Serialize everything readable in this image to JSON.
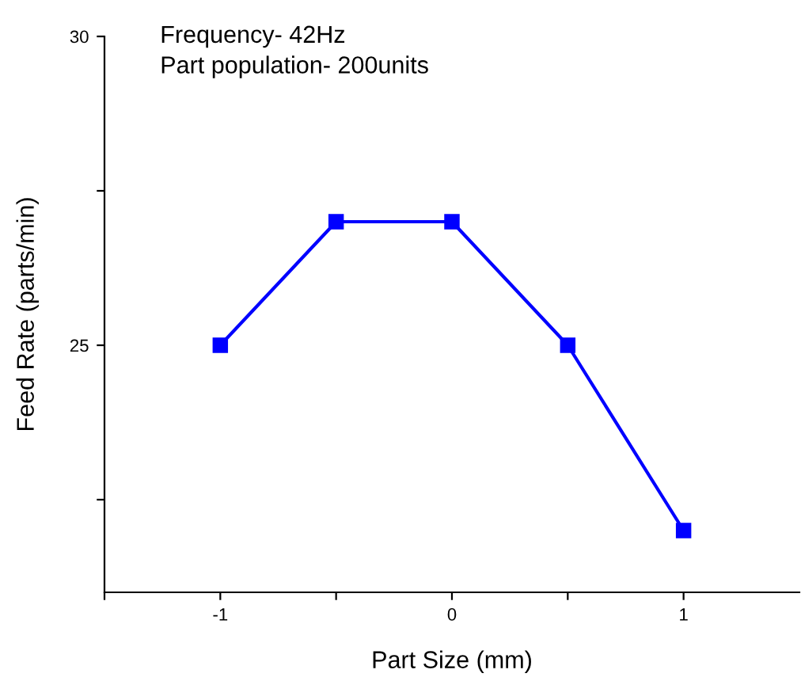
{
  "chart_data": {
    "type": "line",
    "xlabel": "Part Size (mm)",
    "ylabel": "Feed Rate (parts/min)",
    "annotations": [
      "Frequency- 42Hz",
      "Part population- 200units"
    ],
    "x": [
      -1,
      -0.5,
      0,
      0.5,
      1
    ],
    "series": [
      {
        "color": "#0000ff",
        "values": [
          25,
          27,
          27,
          25,
          22
        ]
      }
    ],
    "xlim": [
      -1.5,
      1.5
    ],
    "ylim": [
      21,
      30
    ],
    "xticks": [
      {
        "value": -1.5,
        "label": null
      },
      -1,
      {
        "value": -0.5,
        "label": null
      },
      0,
      {
        "value": 0.5,
        "label": null
      },
      1
    ],
    "yticks": [
      {
        "value": 22.5,
        "label": null
      },
      25,
      {
        "value": 27.5,
        "label": null
      },
      30
    ],
    "marker": "square",
    "line_style": "solid",
    "grid": false,
    "legend": false
  }
}
